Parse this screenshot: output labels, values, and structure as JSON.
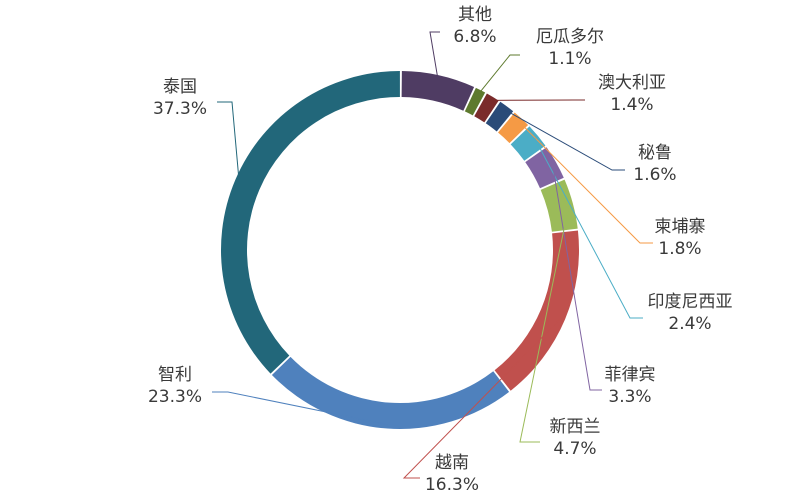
{
  "chart_data": {
    "type": "pie",
    "title": "",
    "slices": [
      {
        "name": "其他",
        "value": 6.8,
        "value_label": "6.8%",
        "color": "#4f3c63"
      },
      {
        "name": "厄瓜多尔",
        "value": 1.1,
        "value_label": "1.1%",
        "color": "#5e7a2e"
      },
      {
        "name": "澳大利亚",
        "value": 1.4,
        "value_label": "1.4%",
        "color": "#7a2b2b"
      },
      {
        "name": "秘鲁",
        "value": 1.6,
        "value_label": "1.6%",
        "color": "#2a4b78"
      },
      {
        "name": "柬埔寨",
        "value": 1.8,
        "value_label": "1.8%",
        "color": "#f59a45"
      },
      {
        "name": "印度尼西亚",
        "value": 2.4,
        "value_label": "2.4%",
        "color": "#4badc6"
      },
      {
        "name": "菲律宾",
        "value": 3.3,
        "value_label": "3.3%",
        "color": "#8064a2"
      },
      {
        "name": "新西兰",
        "value": 4.7,
        "value_label": "4.7%",
        "color": "#9bbb59"
      },
      {
        "name": "越南",
        "value": 16.3,
        "value_label": "16.3%",
        "color": "#c0504d"
      },
      {
        "name": "智利",
        "value": 23.3,
        "value_label": "23.3%",
        "color": "#4f81bd"
      },
      {
        "name": "泰国",
        "value": 37.3,
        "value_label": "37.3%",
        "color": "#22677a"
      }
    ],
    "legend": "none"
  }
}
